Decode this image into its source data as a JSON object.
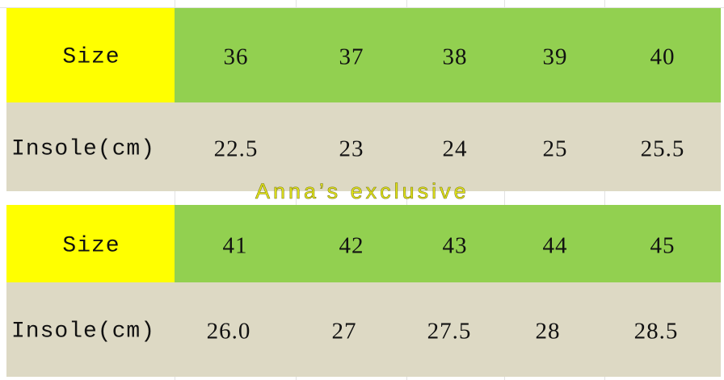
{
  "colors": {
    "label_bg": "#ffff00",
    "size_bg": "#92d050",
    "insole_bg": "#ddd9c4",
    "watermark": "#e4e61a"
  },
  "tables": [
    {
      "size_label": "Size",
      "insole_label": "Insole(cm)",
      "sizes": [
        "36",
        "37",
        "38",
        "39",
        "40"
      ],
      "insoles": [
        "22.5",
        "23",
        "24",
        "25",
        "25.5"
      ]
    },
    {
      "size_label": "Size",
      "insole_label": "Insole(cm)",
      "sizes": [
        "41",
        "42",
        "43",
        "44",
        "45"
      ],
      "insoles": [
        "26.0",
        "27",
        "27.5",
        "28",
        "28.5"
      ]
    }
  ],
  "watermark": "Anna’s exclusive"
}
